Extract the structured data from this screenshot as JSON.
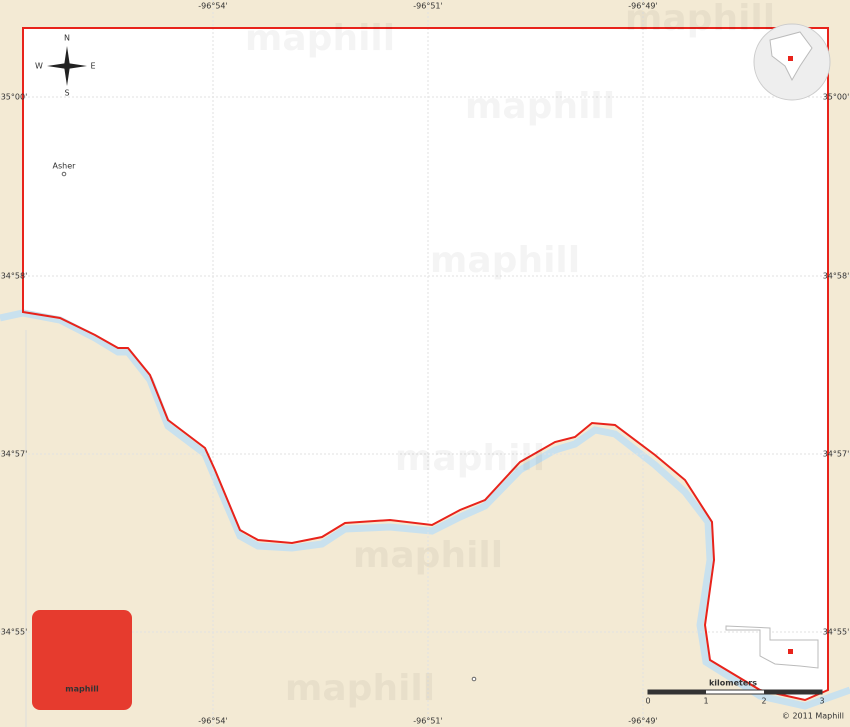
{
  "map": {
    "longitude_labels": [
      "-96°54'",
      "-96°51'",
      "-96°49'"
    ],
    "latitude_labels": [
      "35°00'",
      "34°58'",
      "34°57'",
      "34°55'"
    ],
    "places": [
      "Asher"
    ],
    "compass": {
      "north": "N",
      "south": "S",
      "east": "E",
      "west": "W"
    },
    "watermark": "maphill",
    "logo": "maphill",
    "scale": {
      "title": "kilometers",
      "ticks": [
        0,
        1,
        2,
        3
      ]
    },
    "copyright": "© 2011 Maphill"
  }
}
